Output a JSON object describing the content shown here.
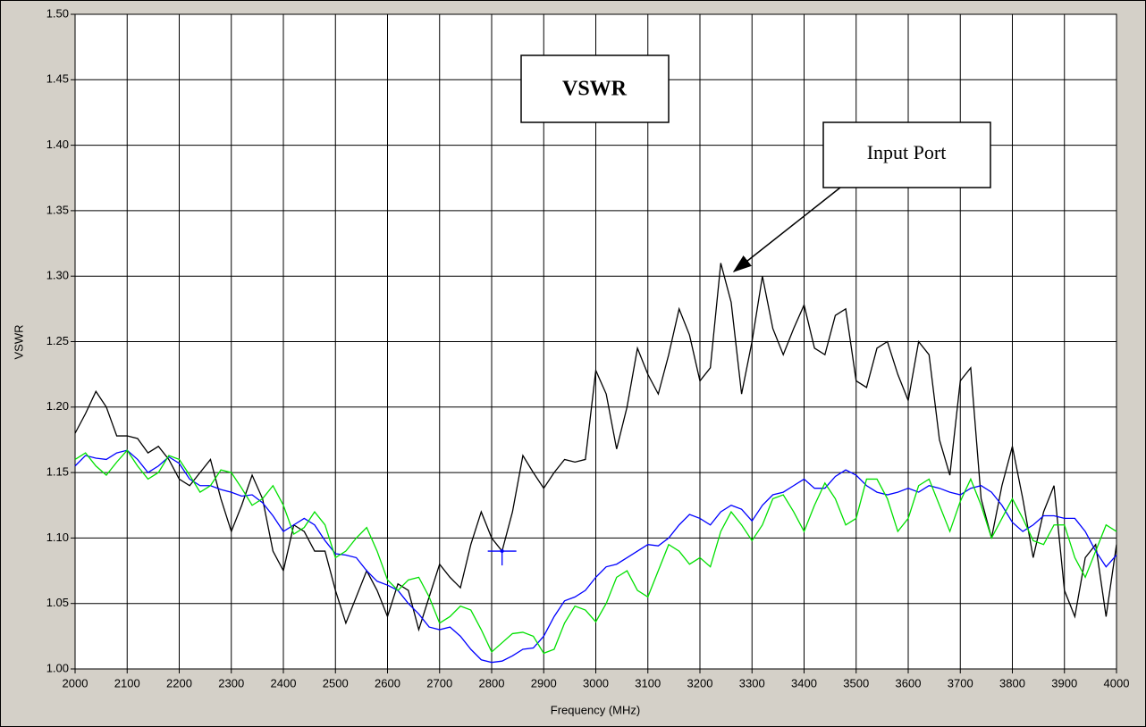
{
  "chart_data": {
    "type": "line",
    "xlabel": "Frequency (MHz)",
    "ylabel": "VSWR",
    "annotations": [
      "VSWR",
      "Input Port"
    ],
    "x": [
      2000,
      2020,
      2040,
      2060,
      2080,
      2100,
      2120,
      2140,
      2160,
      2180,
      2200,
      2220,
      2240,
      2260,
      2280,
      2300,
      2320,
      2340,
      2360,
      2380,
      2400,
      2420,
      2440,
      2460,
      2480,
      2500,
      2520,
      2540,
      2560,
      2580,
      2600,
      2620,
      2640,
      2660,
      2680,
      2700,
      2720,
      2740,
      2760,
      2780,
      2800,
      2820,
      2840,
      2860,
      2880,
      2900,
      2920,
      2940,
      2960,
      2980,
      3000,
      3020,
      3040,
      3060,
      3080,
      3100,
      3120,
      3140,
      3160,
      3180,
      3200,
      3220,
      3240,
      3260,
      3280,
      3300,
      3320,
      3340,
      3360,
      3380,
      3400,
      3420,
      3440,
      3460,
      3480,
      3500,
      3520,
      3540,
      3560,
      3580,
      3600,
      3620,
      3640,
      3660,
      3680,
      3700,
      3720,
      3740,
      3760,
      3780,
      3800,
      3820,
      3840,
      3860,
      3880,
      3900,
      3920,
      3940,
      3960,
      3980,
      4000
    ],
    "series": [
      {
        "color": "#000000",
        "values": [
          1.18,
          1.195,
          1.212,
          1.2,
          1.178,
          1.178,
          1.176,
          1.165,
          1.17,
          1.16,
          1.145,
          1.14,
          1.15,
          1.16,
          1.13,
          1.105,
          1.125,
          1.148,
          1.13,
          1.09,
          1.075,
          1.11,
          1.105,
          1.09,
          1.09,
          1.06,
          1.035,
          1.055,
          1.075,
          1.06,
          1.04,
          1.065,
          1.06,
          1.03,
          1.055,
          1.08,
          1.07,
          1.062,
          1.095,
          1.12,
          1.1,
          1.09,
          1.12,
          1.163,
          1.15,
          1.138,
          1.15,
          1.16,
          1.158,
          1.16,
          1.228,
          1.21,
          1.168,
          1.2,
          1.245,
          1.225,
          1.21,
          1.24,
          1.275,
          1.255,
          1.22,
          1.23,
          1.31,
          1.28,
          1.21,
          1.25,
          1.3,
          1.26,
          1.24,
          1.26,
          1.278,
          1.245,
          1.24,
          1.27,
          1.275,
          1.22,
          1.215,
          1.245,
          1.25,
          1.225,
          1.205,
          1.25,
          1.24,
          1.175,
          1.148,
          1.22,
          1.23,
          1.13,
          1.1,
          1.14,
          1.17,
          1.13,
          1.085,
          1.12,
          1.14,
          1.06,
          1.04,
          1.085,
          1.095,
          1.04,
          1.095
        ]
      },
      {
        "color": "#0000ff",
        "values": [
          1.155,
          1.163,
          1.161,
          1.16,
          1.165,
          1.167,
          1.16,
          1.15,
          1.155,
          1.162,
          1.157,
          1.145,
          1.14,
          1.14,
          1.137,
          1.135,
          1.132,
          1.133,
          1.127,
          1.117,
          1.105,
          1.11,
          1.115,
          1.11,
          1.098,
          1.088,
          1.087,
          1.085,
          1.075,
          1.067,
          1.064,
          1.06,
          1.05,
          1.042,
          1.032,
          1.03,
          1.032,
          1.025,
          1.015,
          1.007,
          1.005,
          1.006,
          1.01,
          1.015,
          1.016,
          1.025,
          1.04,
          1.052,
          1.055,
          1.06,
          1.07,
          1.078,
          1.08,
          1.085,
          1.09,
          1.095,
          1.094,
          1.1,
          1.11,
          1.118,
          1.115,
          1.11,
          1.12,
          1.125,
          1.122,
          1.113,
          1.125,
          1.133,
          1.135,
          1.14,
          1.145,
          1.138,
          1.138,
          1.147,
          1.152,
          1.148,
          1.14,
          1.135,
          1.133,
          1.135,
          1.138,
          1.135,
          1.14,
          1.138,
          1.135,
          1.133,
          1.138,
          1.14,
          1.135,
          1.125,
          1.112,
          1.105,
          1.11,
          1.117,
          1.117,
          1.115,
          1.115,
          1.105,
          1.09,
          1.078,
          1.087
        ]
      },
      {
        "color": "#00e000",
        "values": [
          1.16,
          1.165,
          1.155,
          1.148,
          1.158,
          1.167,
          1.155,
          1.145,
          1.15,
          1.163,
          1.16,
          1.148,
          1.135,
          1.14,
          1.152,
          1.15,
          1.138,
          1.125,
          1.13,
          1.14,
          1.125,
          1.103,
          1.108,
          1.12,
          1.11,
          1.085,
          1.09,
          1.1,
          1.108,
          1.09,
          1.068,
          1.06,
          1.068,
          1.07,
          1.055,
          1.035,
          1.04,
          1.048,
          1.045,
          1.03,
          1.013,
          1.02,
          1.027,
          1.028,
          1.025,
          1.012,
          1.015,
          1.035,
          1.048,
          1.045,
          1.036,
          1.05,
          1.07,
          1.075,
          1.06,
          1.055,
          1.075,
          1.095,
          1.09,
          1.08,
          1.085,
          1.078,
          1.105,
          1.12,
          1.11,
          1.098,
          1.11,
          1.13,
          1.133,
          1.12,
          1.105,
          1.125,
          1.142,
          1.13,
          1.11,
          1.115,
          1.145,
          1.145,
          1.13,
          1.105,
          1.115,
          1.14,
          1.145,
          1.125,
          1.105,
          1.128,
          1.145,
          1.125,
          1.1,
          1.115,
          1.13,
          1.115,
          1.098,
          1.095,
          1.11,
          1.11,
          1.085,
          1.07,
          1.09,
          1.11,
          1.105
        ]
      }
    ],
    "cursor": {
      "x": 2820,
      "y": 1.09,
      "color": "#0000ff"
    },
    "xlim": [
      2000,
      4000
    ],
    "ylim": [
      1,
      1.5
    ],
    "xticks": [
      2000,
      2100,
      2200,
      2300,
      2400,
      2500,
      2600,
      2700,
      2800,
      2900,
      3000,
      3100,
      3200,
      3300,
      3400,
      3500,
      3600,
      3700,
      3800,
      3900,
      4000
    ],
    "yticks": [
      {
        "value": 1,
        "label": "1.00"
      },
      1.05,
      {
        "value": 1.1,
        "label": "1.10"
      },
      1.15,
      {
        "value": 1.2,
        "label": "1.20"
      },
      1.25,
      {
        "value": 1.3,
        "label": "1.30"
      },
      1.35,
      {
        "value": 1.4,
        "label": "1.40"
      },
      1.45,
      {
        "value": 1.5,
        "label": "1.50"
      }
    ],
    "grid": true
  }
}
